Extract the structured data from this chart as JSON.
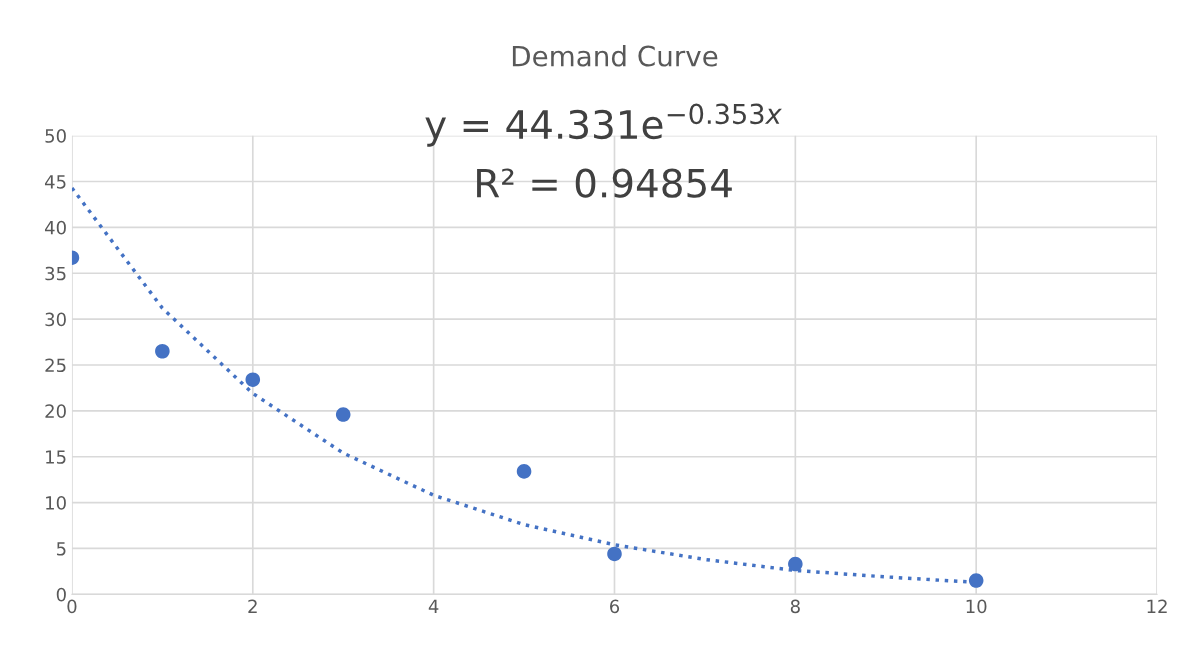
{
  "chart_data": {
    "type": "scatter",
    "title": "Demand Curve",
    "x": [
      0,
      1,
      2,
      3,
      5,
      6,
      8,
      10
    ],
    "series": [
      {
        "color": "#4472c4",
        "marker": "circle",
        "values": [
          36.7,
          26.5,
          23.4,
          19.6,
          13.4,
          4.4,
          3.3,
          1.5
        ]
      },
      {
        "type": "line",
        "color": "#4472c4",
        "line_style": "dotted",
        "marker": "none",
        "x": [
          0,
          1,
          2,
          3,
          4,
          5,
          6,
          7,
          8,
          9,
          10
        ],
        "values": [
          44.3,
          31.2,
          21.9,
          15.4,
          10.8,
          7.6,
          5.4,
          3.8,
          2.6,
          1.9,
          1.3
        ]
      }
    ],
    "annotations": [
      "y = 44.331e$^{−0.353x}$",
      "R² = 0.94854"
    ],
    "xlim": [
      0,
      12
    ],
    "xticks": [
      0,
      2,
      4,
      6,
      8,
      10,
      12
    ],
    "ylim": [
      0,
      50
    ],
    "yticks": [
      0,
      5,
      10,
      15,
      20,
      25,
      30,
      35,
      40,
      45,
      50
    ],
    "grid": true
  }
}
